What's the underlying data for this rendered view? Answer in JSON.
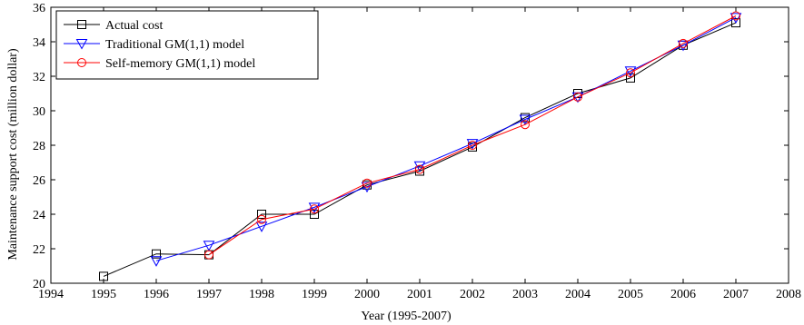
{
  "chart_data": {
    "type": "line",
    "title": "",
    "xlabel": "Year (1995-2007)",
    "ylabel": "Maintenance support cost (million dollar)",
    "xlim": [
      1994,
      2008
    ],
    "ylim": [
      20,
      36
    ],
    "xticks": [
      1994,
      1995,
      1996,
      1997,
      1998,
      1999,
      2000,
      2001,
      2002,
      2003,
      2004,
      2005,
      2006,
      2007,
      2008
    ],
    "yticks": [
      20,
      22,
      24,
      26,
      28,
      30,
      32,
      34,
      36
    ],
    "grid": false,
    "legend_position": "top-left",
    "series": [
      {
        "name": "Actual cost",
        "color": "#000000",
        "marker": "square",
        "x": [
          1995,
          1996,
          1997,
          1998,
          1999,
          2000,
          2001,
          2002,
          2003,
          2004,
          2005,
          2006,
          2007
        ],
        "y": [
          20.4,
          21.7,
          21.65,
          24.0,
          24.0,
          25.7,
          26.5,
          27.9,
          29.6,
          31.0,
          31.9,
          33.8,
          35.1
        ]
      },
      {
        "name": "Traditional GM(1,1) model",
        "color": "#0000ff",
        "marker": "triangle-down",
        "x": [
          1996,
          1997,
          1998,
          1999,
          2000,
          2001,
          2002,
          2003,
          2004,
          2005,
          2006,
          2007
        ],
        "y": [
          21.3,
          22.2,
          23.3,
          24.4,
          25.6,
          26.8,
          28.1,
          29.5,
          30.8,
          32.3,
          33.8,
          35.4
        ]
      },
      {
        "name": "Self-memory GM(1,1) model",
        "color": "#ff0000",
        "marker": "circle",
        "x": [
          1997,
          1998,
          1999,
          2000,
          2001,
          2002,
          2003,
          2004,
          2005,
          2006,
          2007
        ],
        "y": [
          21.65,
          23.7,
          24.3,
          25.8,
          26.6,
          28.0,
          29.2,
          30.8,
          32.2,
          33.9,
          35.5
        ]
      }
    ]
  }
}
